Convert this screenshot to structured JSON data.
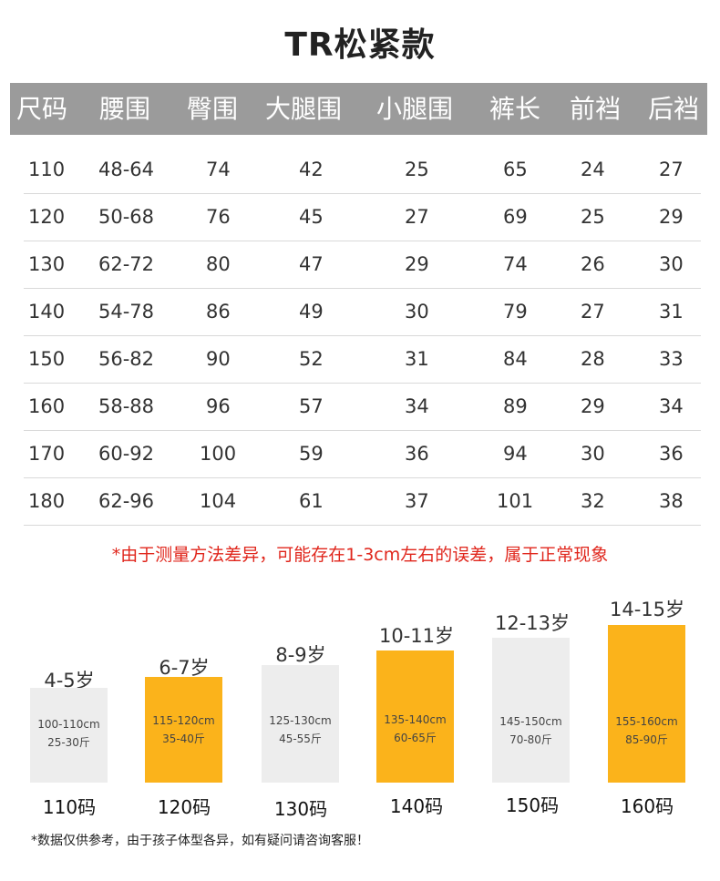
{
  "title": "TR松紧款",
  "table": {
    "headers": [
      "尺码",
      "腰围",
      "臀围",
      "大腿围",
      "小腿围",
      "裤长",
      "前裆",
      "后裆"
    ],
    "rows": [
      [
        "110",
        "48-64",
        "74",
        "42",
        "25",
        "65",
        "24",
        "27"
      ],
      [
        "120",
        "50-68",
        "76",
        "45",
        "27",
        "69",
        "25",
        "29"
      ],
      [
        "130",
        "62-72",
        "80",
        "47",
        "29",
        "74",
        "26",
        "30"
      ],
      [
        "140",
        "54-78",
        "86",
        "49",
        "30",
        "79",
        "27",
        "31"
      ],
      [
        "150",
        "56-82",
        "90",
        "52",
        "31",
        "84",
        "28",
        "33"
      ],
      [
        "160",
        "58-88",
        "96",
        "57",
        "34",
        "89",
        "29",
        "34"
      ],
      [
        "170",
        "60-92",
        "100",
        "59",
        "36",
        "94",
        "30",
        "36"
      ],
      [
        "180",
        "62-96",
        "104",
        "61",
        "37",
        "101",
        "32",
        "38"
      ]
    ]
  },
  "note": "*由于测量方法差异，可能存在1-3cm左右的误差，属于正常现象",
  "size_guide": [
    {
      "age": "4-5岁",
      "height": "100-110cm",
      "weight": "25-30斤",
      "size": "110码",
      "color": "grey"
    },
    {
      "age": "6-7岁",
      "height": "115-120cm",
      "weight": "35-40斤",
      "size": "120码",
      "color": "yellow"
    },
    {
      "age": "8-9岁",
      "height": "125-130cm",
      "weight": "45-55斤",
      "size": "130码",
      "color": "grey"
    },
    {
      "age": "10-11岁",
      "height": "135-140cm",
      "weight": "60-65斤",
      "size": "140码",
      "color": "yellow"
    },
    {
      "age": "12-13岁",
      "height": "145-150cm",
      "weight": "70-80斤",
      "size": "150码",
      "color": "grey"
    },
    {
      "age": "14-15岁",
      "height": "155-160cm",
      "weight": "85-90斤",
      "size": "160码",
      "color": "yellow"
    }
  ],
  "colors": {
    "header_bg": "#9b9b9b",
    "accent_yellow": "#fbb31b",
    "box_grey": "#ededed",
    "note_red": "#e0261c"
  },
  "footer": "*数据仅供参考，由于孩子体型各异，如有疑问请咨询客服！"
}
